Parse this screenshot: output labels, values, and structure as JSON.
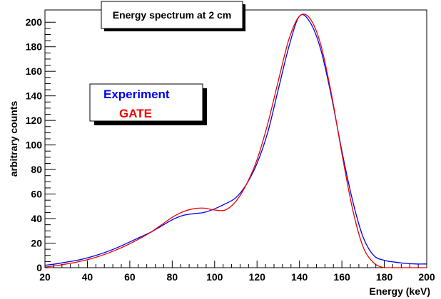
{
  "chart_data": {
    "type": "line",
    "title": "Energy spectrum at 2 cm",
    "xlabel": "Energy (keV)",
    "ylabel": "arbitrary counts",
    "xlim": [
      20,
      200
    ],
    "ylim": [
      0,
      210
    ],
    "x_ticks": [
      20,
      40,
      60,
      80,
      100,
      120,
      140,
      160,
      180,
      200
    ],
    "y_ticks": [
      0,
      20,
      40,
      60,
      80,
      100,
      120,
      140,
      160,
      180,
      200
    ],
    "legend_position": "upper-left",
    "grid": false,
    "series": [
      {
        "name": "Experiment",
        "color": "#0000ee",
        "x": [
          20,
          25,
          30,
          35,
          40,
          45,
          50,
          55,
          60,
          65,
          70,
          75,
          80,
          85,
          90,
          95,
          100,
          105,
          110,
          115,
          120,
          125,
          130,
          135,
          140,
          145,
          150,
          155,
          160,
          165,
          170,
          175,
          180,
          185,
          190,
          195,
          200
        ],
        "values": [
          2,
          3,
          4.5,
          6,
          8,
          10.5,
          13.5,
          17,
          21,
          25,
          29,
          34,
          39,
          42.5,
          44,
          45,
          48,
          52,
          57,
          68,
          85,
          110,
          145,
          180,
          205,
          200,
          178,
          140,
          95,
          55,
          25,
          10,
          6,
          4.5,
          3.5,
          3,
          3
        ]
      },
      {
        "name": "GATE",
        "color": "#ee0000",
        "x": [
          20,
          25,
          30,
          35,
          40,
          45,
          50,
          55,
          60,
          65,
          70,
          75,
          80,
          85,
          90,
          95,
          100,
          105,
          110,
          115,
          120,
          125,
          130,
          135,
          140,
          145,
          150,
          155,
          160,
          165,
          170,
          175,
          180,
          185,
          190,
          195,
          200
        ],
        "values": [
          0.5,
          1.5,
          3,
          4.5,
          6.5,
          9,
          12,
          15.5,
          19.5,
          24,
          29,
          35,
          41,
          45.5,
          48,
          48.5,
          47,
          47,
          54,
          68,
          88,
          117,
          152,
          186,
          205,
          203,
          182,
          142,
          93,
          48,
          17,
          4,
          0,
          0,
          0,
          0,
          0
        ]
      }
    ]
  }
}
